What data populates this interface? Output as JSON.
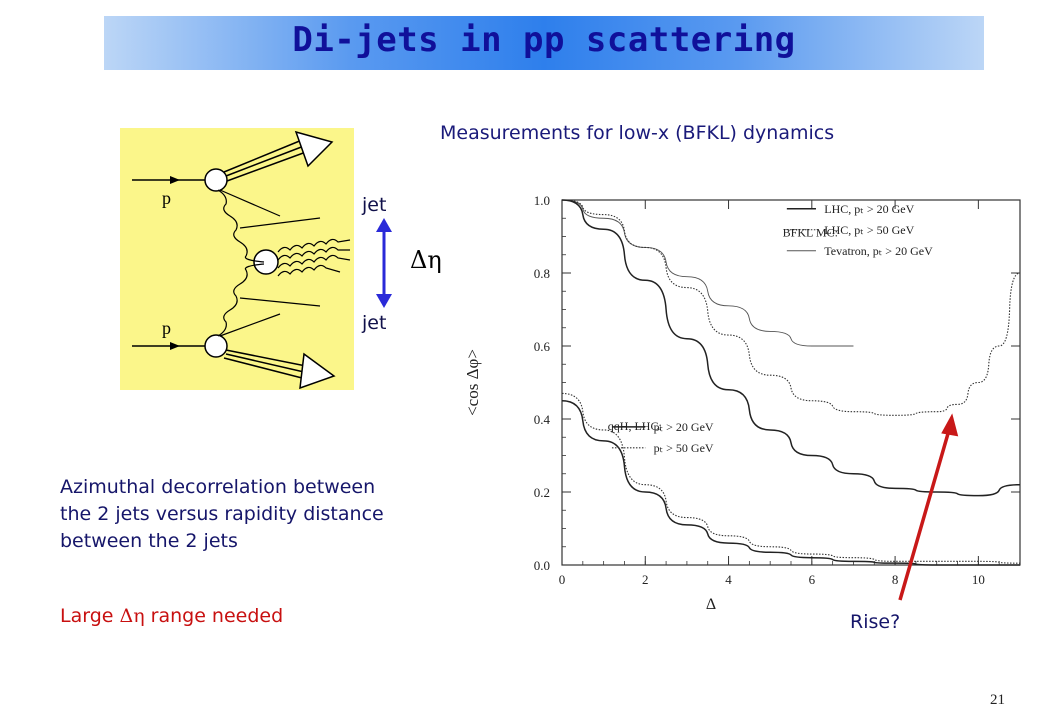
{
  "slide": {
    "title": "Di-jets in pp scattering",
    "subtitle": "Measurements for low-x (BFKL) dynamics",
    "jet_top": "jet",
    "jet_bottom": "jet",
    "delta_eta": "Δη",
    "description_lines": [
      "Azimuthal decorrelation between",
      "the 2 jets versus rapidity distance",
      "between the 2 jets"
    ],
    "note_parts": [
      "Large ",
      "Δη",
      " range needed"
    ],
    "rise_label": "Rise?",
    "page_number": "21"
  },
  "diagram": {
    "proton_label_top": "p",
    "proton_label_bottom": "p"
  },
  "colors": {
    "title_text": "#10109a",
    "title_gradient_center": "#2e7fec",
    "panel_background": "#fbf68a",
    "arrow_blue": "#2a2ad8",
    "note_red": "#c81010",
    "rise_arrow": "#c81818"
  },
  "chart_data": {
    "type": "line",
    "ylabel": "<cos Δφ>",
    "xlabel": "Δ",
    "xlim": [
      0,
      11
    ],
    "ylim": [
      0,
      1.0
    ],
    "x_ticks": [
      "0",
      "2",
      "4",
      "6",
      "8",
      "10"
    ],
    "y_ticks": [
      "0.0",
      "0.2",
      "0.4",
      "0.6",
      "0.8",
      "1.0"
    ],
    "legend_groups": [
      {
        "heading": "BFKL MC:",
        "entries": [
          "Tevatron, pₜ > 20 GeV",
          "LHC, pₜ > 50 GeV",
          "LHC, pₜ > 20 GeV"
        ]
      },
      {
        "heading": "qqH, LHC:",
        "entries": [
          "pₜ > 50 GeV",
          "pₜ > 20 GeV"
        ]
      }
    ],
    "series": [
      {
        "name": "Tevatron, pT > 20 GeV",
        "style": "thin",
        "points": [
          [
            0,
            1.0
          ],
          [
            1,
            0.95
          ],
          [
            2,
            0.87
          ],
          [
            3,
            0.79
          ],
          [
            4,
            0.71
          ],
          [
            5,
            0.64
          ],
          [
            6,
            0.6
          ],
          [
            7,
            0.6
          ]
        ]
      },
      {
        "name": "LHC, pT > 50 GeV",
        "style": "dotted",
        "points": [
          [
            0,
            1.0
          ],
          [
            1,
            0.96
          ],
          [
            2,
            0.87
          ],
          [
            3,
            0.76
          ],
          [
            4,
            0.63
          ],
          [
            5,
            0.52
          ],
          [
            6,
            0.45
          ],
          [
            7,
            0.42
          ],
          [
            8,
            0.41
          ],
          [
            9,
            0.42
          ],
          [
            9.5,
            0.44
          ],
          [
            10,
            0.5
          ],
          [
            10.5,
            0.6
          ],
          [
            11,
            0.8
          ]
        ]
      },
      {
        "name": "LHC, pT > 20 GeV",
        "style": "solid",
        "points": [
          [
            0,
            1.0
          ],
          [
            1,
            0.92
          ],
          [
            2,
            0.78
          ],
          [
            3,
            0.62
          ],
          [
            4,
            0.48
          ],
          [
            5,
            0.37
          ],
          [
            6,
            0.3
          ],
          [
            7,
            0.25
          ],
          [
            8,
            0.21
          ],
          [
            9,
            0.2
          ],
          [
            10,
            0.19
          ],
          [
            11,
            0.22
          ]
        ]
      },
      {
        "name": "qqH pₜ > 50 GeV",
        "style": "dotted",
        "points": [
          [
            0,
            0.47
          ],
          [
            1,
            0.37
          ],
          [
            2,
            0.22
          ],
          [
            3,
            0.13
          ],
          [
            4,
            0.08
          ],
          [
            5,
            0.05
          ],
          [
            6,
            0.03
          ],
          [
            7,
            0.02
          ],
          [
            8,
            0.01
          ],
          [
            9,
            0.01
          ],
          [
            10,
            0.01
          ],
          [
            11,
            0.005
          ]
        ]
      },
      {
        "name": "qqH pₜ > 20 GeV",
        "style": "solid",
        "points": [
          [
            0,
            0.45
          ],
          [
            1,
            0.34
          ],
          [
            2,
            0.2
          ],
          [
            3,
            0.11
          ],
          [
            4,
            0.06
          ],
          [
            5,
            0.035
          ],
          [
            6,
            0.02
          ],
          [
            7,
            0.01
          ],
          [
            8,
            0.005
          ],
          [
            9,
            0.0
          ],
          [
            10,
            0.0
          ],
          [
            11,
            0.0
          ]
        ]
      }
    ]
  }
}
